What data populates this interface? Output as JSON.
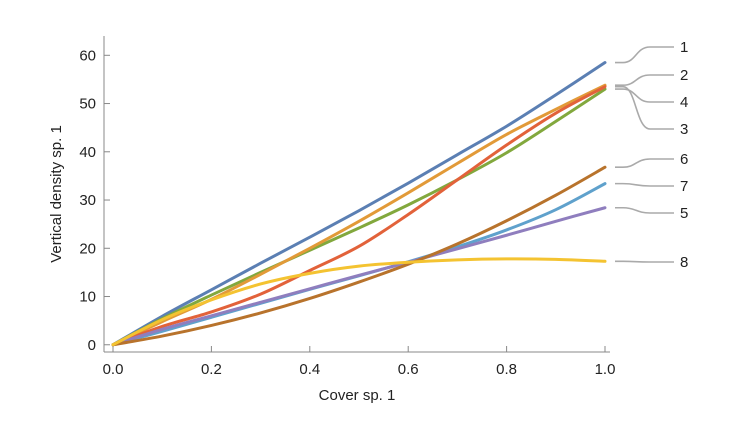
{
  "chart_data": {
    "type": "line",
    "xlabel": "Cover sp. 1",
    "ylabel": "Vertical density sp. 1",
    "xlim": [
      0,
      1.0
    ],
    "ylim": [
      -1.5,
      64
    ],
    "x_ticks": [
      "0.0",
      "0.2",
      "0.4",
      "0.6",
      "0.8",
      "1.0"
    ],
    "y_ticks": [
      "0",
      "10",
      "20",
      "30",
      "40",
      "50",
      "60"
    ],
    "grid": false,
    "legend": "right-side callout labels",
    "x": [
      0,
      0.1,
      0.2,
      0.3,
      0.4,
      0.5,
      0.6,
      0.7,
      0.8,
      0.9,
      1.0
    ],
    "series": [
      {
        "name": "1",
        "color": "#5B7FB3",
        "values": [
          0,
          5.9,
          11.4,
          16.9,
          22.3,
          27.8,
          33.5,
          39.4,
          45.3,
          51.8,
          58.5
        ]
      },
      {
        "name": "2",
        "color": "#E29A38",
        "values": [
          0,
          4.8,
          9.4,
          14.6,
          20.0,
          25.6,
          31.5,
          37.6,
          43.6,
          48.8,
          53.8
        ]
      },
      {
        "name": "4",
        "color": "#82A83D",
        "values": [
          0,
          5.4,
          10.3,
          15.0,
          19.6,
          24.2,
          29.0,
          34.2,
          39.8,
          46.3,
          53.0
        ]
      },
      {
        "name": "3",
        "color": "#E2623A",
        "values": [
          0,
          3.8,
          6.8,
          10.5,
          15.4,
          20.4,
          27.0,
          34.2,
          41.4,
          48.0,
          53.5
        ]
      },
      {
        "name": "6",
        "color": "#B8732C",
        "values": [
          0,
          1.8,
          4.0,
          6.6,
          9.6,
          13.0,
          16.7,
          20.9,
          25.7,
          31.0,
          36.8
        ]
      },
      {
        "name": "7",
        "color": "#5FA1CC",
        "values": [
          0,
          2.8,
          5.7,
          8.6,
          11.5,
          14.3,
          17.2,
          20.3,
          23.8,
          28.0,
          33.4
        ]
      },
      {
        "name": "5",
        "color": "#8F7EBE",
        "values": [
          0,
          3.2,
          6.0,
          8.8,
          11.6,
          14.4,
          17.1,
          19.9,
          22.7,
          25.6,
          28.4
        ]
      },
      {
        "name": "8",
        "color": "#F4C331",
        "values": [
          0,
          5.2,
          9.3,
          12.6,
          14.8,
          16.3,
          17.1,
          17.6,
          17.8,
          17.7,
          17.3
        ]
      }
    ]
  }
}
